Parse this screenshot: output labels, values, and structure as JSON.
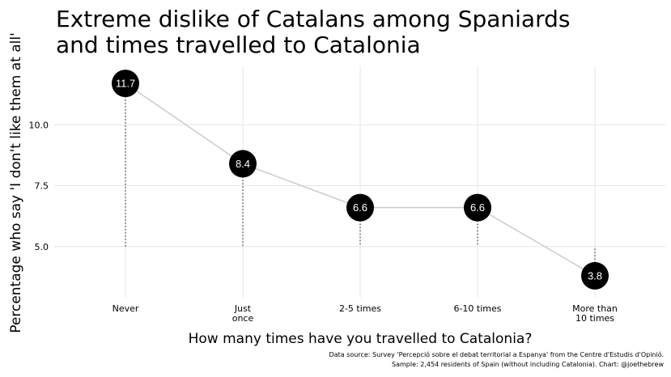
{
  "chart_data": {
    "type": "line",
    "title_lines": [
      "Extreme dislike of Catalans among Spaniards",
      "and times travelled to Catalonia"
    ],
    "xlabel": "How many times have you travelled to Catalonia?",
    "ylabel": "Percentage who say 'I don't like them at all'",
    "categories": [
      [
        "Never"
      ],
      [
        "Just",
        "once"
      ],
      [
        "2-5 times"
      ],
      [
        "6-10 times"
      ],
      [
        "More than",
        "10 times"
      ]
    ],
    "values": [
      11.7,
      8.4,
      6.6,
      6.6,
      3.8
    ],
    "labels": [
      "11.7",
      "8.4",
      "6.6",
      "6.6",
      "3.8"
    ],
    "yticks": [
      5.0,
      7.5,
      10.0
    ],
    "ytick_labels": [
      "5.0",
      "7.5",
      "10.0"
    ],
    "ylim": [
      2.9,
      12.4
    ],
    "reference_value": 5.0,
    "grid": true,
    "caption_lines": [
      "Data source: Survey 'Percepció sobre el debat territorial a Espanya' from the Centre d'Estudis d'Opinió.",
      "Sample: 2,454 residents of Spain (without including Catalonia). Chart: @joethebrew"
    ],
    "colors": {
      "point": "#000000",
      "line": "#cccccc",
      "grid": "#e6e6e6",
      "segment": "#333333",
      "label": "#ffffff"
    }
  }
}
